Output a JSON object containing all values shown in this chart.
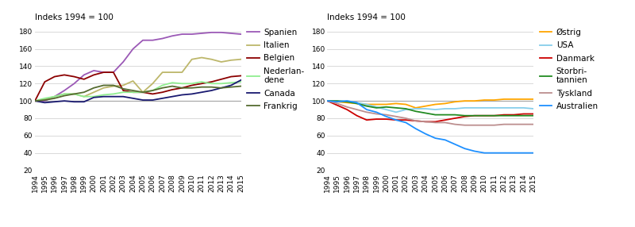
{
  "years": [
    1994,
    1995,
    1996,
    1997,
    1998,
    1999,
    2000,
    2001,
    2002,
    2003,
    2004,
    2005,
    2006,
    2007,
    2008,
    2009,
    2010,
    2011,
    2012,
    2013,
    2014,
    2015
  ],
  "left_panel": {
    "header": "Indeks 1994 = 100",
    "ylim": [
      20,
      185
    ],
    "yticks": [
      20,
      40,
      60,
      80,
      100,
      120,
      140,
      160,
      180
    ],
    "series": {
      "Spanien": [
        100,
        100,
        105,
        112,
        120,
        130,
        135,
        133,
        133,
        145,
        160,
        170,
        170,
        172,
        175,
        177,
        177,
        178,
        179,
        179,
        178,
        177
      ],
      "Italien": [
        100,
        102,
        105,
        108,
        108,
        105,
        110,
        115,
        117,
        118,
        123,
        110,
        120,
        133,
        133,
        133,
        148,
        150,
        148,
        145,
        147,
        148
      ],
      "Belgien": [
        100,
        122,
        128,
        130,
        128,
        125,
        130,
        133,
        133,
        112,
        110,
        110,
        108,
        110,
        113,
        115,
        118,
        120,
        122,
        125,
        128,
        129
      ],
      "Nederlandene": [
        100,
        103,
        105,
        108,
        108,
        105,
        105,
        107,
        108,
        110,
        110,
        110,
        112,
        118,
        121,
        120,
        120,
        122,
        120,
        120,
        121,
        122
      ],
      "Canada": [
        100,
        98,
        99,
        100,
        99,
        99,
        104,
        105,
        105,
        105,
        103,
        101,
        101,
        103,
        105,
        107,
        108,
        110,
        112,
        115,
        118,
        124
      ],
      "Frankrig": [
        100,
        101,
        103,
        106,
        108,
        110,
        115,
        118,
        118,
        114,
        112,
        110,
        112,
        115,
        117,
        115,
        115,
        116,
        116,
        115,
        116,
        117
      ]
    },
    "colors": {
      "Spanien": "#9b59b6",
      "Italien": "#bdb76b",
      "Belgien": "#8b0000",
      "Nederlandene": "#90ee90",
      "Canada": "#191970",
      "Frankrig": "#556b2f"
    },
    "legend_labels": {
      "Spanien": "Spanien",
      "Italien": "Italien",
      "Belgien": "Belgien",
      "Nederlandene": "Nederlan-\ndene",
      "Canada": "Canada",
      "Frankrig": "Frankrig"
    }
  },
  "right_panel": {
    "header": "Indeks 1994 = 100",
    "ylim": [
      20,
      185
    ],
    "yticks": [
      20,
      40,
      60,
      80,
      100,
      120,
      140,
      160,
      180
    ],
    "series": {
      "Ostrig": [
        100,
        99,
        98,
        97,
        96,
        96,
        96,
        97,
        96,
        92,
        94,
        96,
        97,
        99,
        100,
        100,
        101,
        101,
        102,
        102,
        102,
        102
      ],
      "USA": [
        100,
        100,
        100,
        98,
        96,
        93,
        90,
        87,
        90,
        91,
        91,
        90,
        91,
        91,
        92,
        92,
        92,
        92,
        92,
        92,
        92,
        91
      ],
      "Danmark": [
        100,
        95,
        90,
        83,
        78,
        79,
        79,
        78,
        78,
        77,
        76,
        76,
        78,
        80,
        82,
        83,
        83,
        83,
        84,
        84,
        85,
        85
      ],
      "Storbritannien": [
        100,
        100,
        99,
        97,
        94,
        92,
        93,
        92,
        91,
        88,
        86,
        84,
        84,
        84,
        83,
        83,
        83,
        83,
        83,
        83,
        83,
        83
      ],
      "Tyskland": [
        100,
        97,
        93,
        90,
        87,
        85,
        84,
        82,
        80,
        77,
        76,
        75,
        75,
        73,
        72,
        72,
        72,
        72,
        73,
        73,
        73,
        73
      ],
      "Australien": [
        100,
        99,
        100,
        98,
        90,
        87,
        82,
        78,
        75,
        68,
        62,
        57,
        55,
        50,
        45,
        42,
        40,
        40,
        40,
        40,
        40,
        40
      ]
    },
    "colors": {
      "Ostrig": "#FFA500",
      "USA": "#87CEEB",
      "Danmark": "#CC0000",
      "Storbritannien": "#228B22",
      "Tyskland": "#BC8F8F",
      "Australien": "#1E90FF"
    },
    "legend_labels": {
      "Ostrig": "Østrig",
      "USA": "USA",
      "Danmark": "Danmark",
      "Storbritannien": "Storbri-\ntannien",
      "Tyskland": "Tyskland",
      "Australien": "Australien"
    }
  },
  "reference_line": 100,
  "reference_color": "#aaaaaa",
  "background_color": "#ffffff",
  "grid_color": "#d3d3d3",
  "tick_label_fontsize": 6.5,
  "header_fontsize": 7.5,
  "legend_fontsize": 7.5,
  "line_width": 1.3
}
